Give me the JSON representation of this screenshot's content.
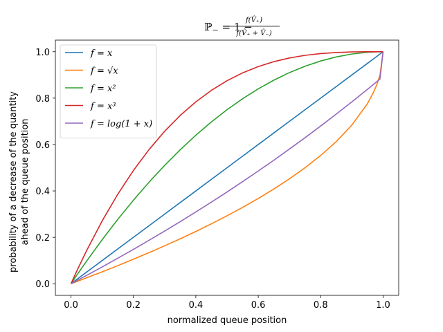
{
  "chart_data": {
    "type": "line",
    "title": {
      "lhs": "ℙ",
      "lhs_sub": "−",
      "eq": " = 1 − ",
      "numerator": "f(V̂₊)",
      "denominator": "f(V̂₊ + V̂₋)",
      "full": "ℙ− = 1 − f(V̂₊) / f(V̂₊ + V̂₋)"
    },
    "xlabel": "normalized queue position",
    "ylabel": [
      "probability of a decrease of the quantity",
      "ahead of the queue position"
    ],
    "xlim": [
      -0.05,
      1.05
    ],
    "ylim": [
      -0.05,
      1.05
    ],
    "xticks": [
      0.0,
      0.2,
      0.4,
      0.6,
      0.8,
      1.0
    ],
    "xtick_labels": [
      "0.0",
      "0.2",
      "0.4",
      "0.6",
      "0.8",
      "1.0"
    ],
    "yticks": [
      0.0,
      0.2,
      0.4,
      0.6,
      0.8,
      1.0
    ],
    "ytick_labels": [
      "0.0",
      "0.2",
      "0.4",
      "0.6",
      "0.8",
      "1.0"
    ],
    "grid": false,
    "legend_position": "top-left",
    "x": [
      0.0,
      0.02,
      0.05,
      0.1,
      0.15,
      0.2,
      0.25,
      0.3,
      0.35,
      0.4,
      0.45,
      0.5,
      0.55,
      0.6,
      0.65,
      0.7,
      0.75,
      0.8,
      0.85,
      0.9,
      0.95,
      0.97,
      0.98,
      0.99,
      1.0
    ],
    "series": [
      {
        "name": "f = x",
        "color": "#1f77b4",
        "values": [
          0.0,
          0.02,
          0.05,
          0.1,
          0.15,
          0.2,
          0.25,
          0.3,
          0.35,
          0.4,
          0.45,
          0.5,
          0.55,
          0.6,
          0.65,
          0.7,
          0.75,
          0.8,
          0.85,
          0.9,
          0.95,
          0.97,
          0.98,
          0.99,
          1.0
        ]
      },
      {
        "name": "f = √x",
        "color": "#ff7f0e",
        "values": [
          0.0,
          0.0101,
          0.0257,
          0.0513,
          0.078,
          0.1056,
          0.134,
          0.1633,
          0.1937,
          0.2254,
          0.2584,
          0.2929,
          0.3292,
          0.3675,
          0.4084,
          0.4523,
          0.5,
          0.5528,
          0.6127,
          0.6838,
          0.7764,
          0.8268,
          0.8586,
          0.9,
          1.0
        ]
      },
      {
        "name": "f = x²",
        "color": "#2ca02c",
        "values": [
          0.0,
          0.0396,
          0.0975,
          0.19,
          0.2775,
          0.36,
          0.4375,
          0.51,
          0.5775,
          0.64,
          0.6975,
          0.75,
          0.7975,
          0.84,
          0.8775,
          0.91,
          0.9375,
          0.96,
          0.9775,
          0.99,
          0.9975,
          0.9991,
          0.9996,
          0.9999,
          1.0
        ]
      },
      {
        "name": "f = x³",
        "color": "#d62728",
        "values": [
          0.0,
          0.0588,
          0.1426,
          0.271,
          0.3859,
          0.488,
          0.5781,
          0.657,
          0.7254,
          0.784,
          0.8336,
          0.875,
          0.9089,
          0.936,
          0.9571,
          0.973,
          0.9844,
          0.992,
          0.9966,
          0.999,
          0.9999,
          1.0,
          1.0,
          1.0,
          1.0
        ]
      },
      {
        "name": "f = log(1 + x)",
        "color": "#9467bd",
        "values": [
          0.0,
          0.0143,
          0.0359,
          0.0725,
          0.1099,
          0.148,
          0.1871,
          0.2269,
          0.2676,
          0.3094,
          0.3518,
          0.3955,
          0.4402,
          0.4859,
          0.5325,
          0.5806,
          0.6295,
          0.6798,
          0.7313,
          0.7839,
          0.8378,
          0.86,
          0.8711,
          0.8823,
          1.0
        ]
      }
    ]
  }
}
